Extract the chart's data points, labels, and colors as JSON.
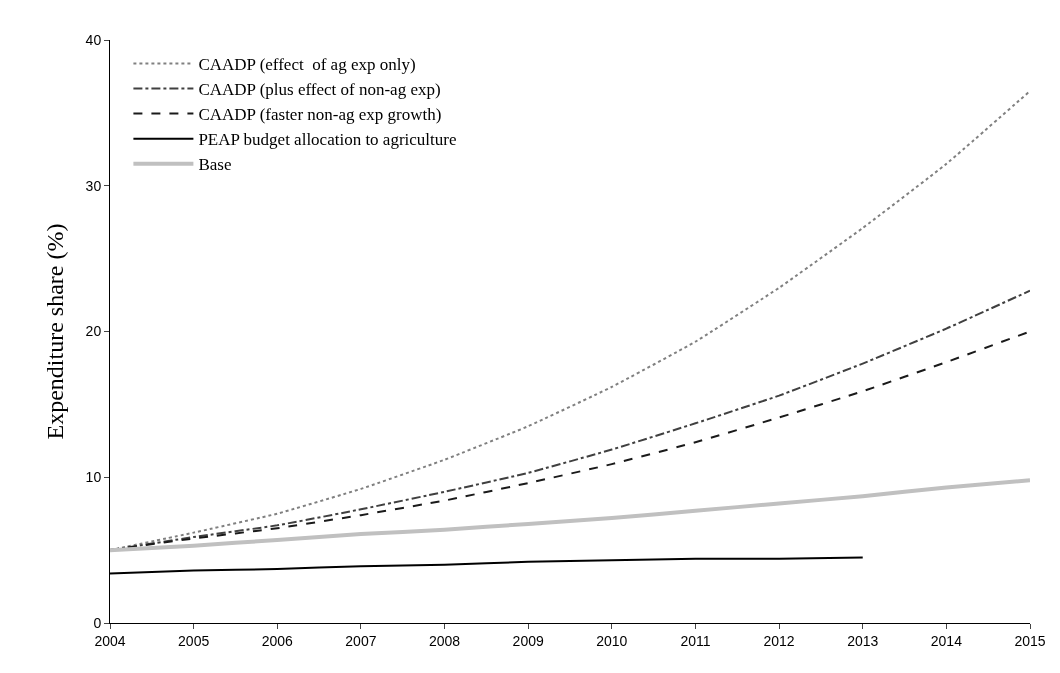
{
  "chart_data": {
    "type": "line",
    "ylabel": "Expenditure share (%)",
    "x": [
      2004,
      2005,
      2006,
      2007,
      2008,
      2009,
      2010,
      2011,
      2012,
      2013,
      2014,
      2015
    ],
    "xlim": [
      2004,
      2015
    ],
    "xticks": [
      2004,
      2005,
      2006,
      2007,
      2008,
      2009,
      2010,
      2011,
      2012,
      2013,
      2014,
      2015
    ],
    "ylim": [
      0,
      40
    ],
    "yticks": [
      0,
      10,
      20,
      30,
      40
    ],
    "legend": "top left",
    "marker": "none",
    "series": [
      {
        "name": "CAADP (effect  of ag exp only)",
        "color": "#808080",
        "line_style": "dotted",
        "values": [
          5.0,
          6.2,
          7.5,
          9.2,
          11.2,
          13.5,
          16.2,
          19.3,
          23.0,
          27.1,
          31.5,
          36.5
        ]
      },
      {
        "name": "CAADP (plus effect of non-ag exp)",
        "color": "#404040",
        "line_style": "dashdot",
        "values": [
          5.0,
          5.9,
          6.7,
          7.8,
          9.0,
          10.3,
          11.9,
          13.7,
          15.6,
          17.8,
          20.2,
          22.8
        ]
      },
      {
        "name": "CAADP (faster non-ag exp growth)",
        "color": "#1a1a1a",
        "line_style": "dashed",
        "values": [
          5.0,
          5.8,
          6.5,
          7.4,
          8.4,
          9.6,
          10.9,
          12.4,
          14.1,
          15.9,
          17.9,
          20.0
        ]
      },
      {
        "name": "PEAP budget allocation to agriculture",
        "color": "#000000",
        "line_style": "solid",
        "values": [
          3.4,
          3.6,
          3.7,
          3.9,
          4.0,
          4.2,
          4.3,
          4.4,
          4.4,
          4.5,
          null,
          null
        ]
      },
      {
        "name": "Base",
        "color": "#c0c0c0",
        "line_style": "solid",
        "values": [
          5.0,
          5.3,
          5.7,
          6.1,
          6.4,
          6.8,
          7.2,
          7.7,
          8.2,
          8.7,
          9.3,
          9.8
        ]
      }
    ]
  }
}
